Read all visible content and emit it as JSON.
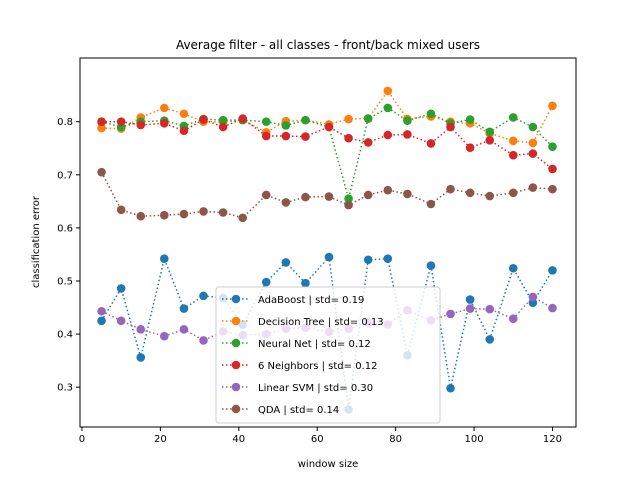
{
  "chart_data": {
    "type": "line",
    "title": "Average filter - all classes - front/back mixed users",
    "xlabel": "window size",
    "ylabel": "classification error",
    "xlim": [
      -0.5,
      126
    ],
    "ylim": [
      0.225,
      0.92
    ],
    "xticks": [
      0,
      20,
      40,
      60,
      80,
      100,
      120
    ],
    "yticks": [
      0.3,
      0.4,
      0.5,
      0.6,
      0.7,
      0.8
    ],
    "xtick_labels": [
      "0",
      "20",
      "40",
      "60",
      "80",
      "100",
      "120"
    ],
    "ytick_labels": [
      "0.3",
      "0.4",
      "0.5",
      "0.6",
      "0.7",
      "0.8"
    ],
    "grid": false,
    "legend_placement": "lower-center",
    "x": [
      5,
      10,
      15,
      21,
      26,
      31,
      36,
      41,
      47,
      52,
      57,
      63,
      68,
      73,
      78,
      83,
      89,
      94,
      99,
      104,
      110,
      115,
      120
    ],
    "series": [
      {
        "name": "AdaBoost | std= 0.19",
        "color": "#1f77b4",
        "values": [
          0.425,
          0.486,
          0.356,
          0.542,
          0.448,
          0.472,
          0.468,
          0.418,
          0.498,
          0.535,
          0.496,
          0.545,
          0.258,
          0.54,
          0.542,
          0.36,
          0.529,
          0.298,
          0.465,
          0.39,
          0.524,
          0.459,
          0.52
        ]
      },
      {
        "name": "Decision Tree | std= 0.13",
        "color": "#ff7f0e",
        "values": [
          0.788,
          0.787,
          0.808,
          0.826,
          0.815,
          0.8,
          0.8,
          0.803,
          0.78,
          0.801,
          0.803,
          0.795,
          0.805,
          0.806,
          0.858,
          0.805,
          0.81,
          0.8,
          0.797,
          0.778,
          0.764,
          0.76,
          0.83
        ]
      },
      {
        "name": "Neural Net | std= 0.12",
        "color": "#2ca02c",
        "values": [
          0.8,
          0.79,
          0.8,
          0.802,
          0.792,
          0.805,
          0.803,
          0.803,
          0.8,
          0.793,
          0.803,
          0.79,
          0.655,
          0.806,
          0.826,
          0.802,
          0.815,
          0.797,
          0.804,
          0.781,
          0.808,
          0.79,
          0.753
        ]
      },
      {
        "name": "6 Neighbors | std= 0.12",
        "color": "#d62728",
        "values": [
          0.8,
          0.8,
          0.794,
          0.797,
          0.783,
          0.804,
          0.79,
          0.806,
          0.773,
          0.773,
          0.772,
          0.79,
          0.769,
          0.761,
          0.775,
          0.776,
          0.759,
          0.79,
          0.751,
          0.765,
          0.737,
          0.74,
          0.711
        ]
      },
      {
        "name": "Linear SVM | std= 0.30",
        "color": "#9467bd",
        "values": [
          0.443,
          0.425,
          0.409,
          0.396,
          0.409,
          0.388,
          0.405,
          0.398,
          0.4,
          0.41,
          0.412,
          0.404,
          0.41,
          0.422,
          0.418,
          0.445,
          0.426,
          0.438,
          0.448,
          0.447,
          0.429,
          0.47,
          0.449
        ]
      },
      {
        "name": "QDA | std= 0.14",
        "color": "#8c564b",
        "values": [
          0.705,
          0.634,
          0.622,
          0.624,
          0.626,
          0.631,
          0.629,
          0.619,
          0.662,
          0.648,
          0.658,
          0.659,
          0.643,
          0.662,
          0.671,
          0.664,
          0.645,
          0.673,
          0.666,
          0.66,
          0.666,
          0.676,
          0.673
        ]
      }
    ]
  }
}
